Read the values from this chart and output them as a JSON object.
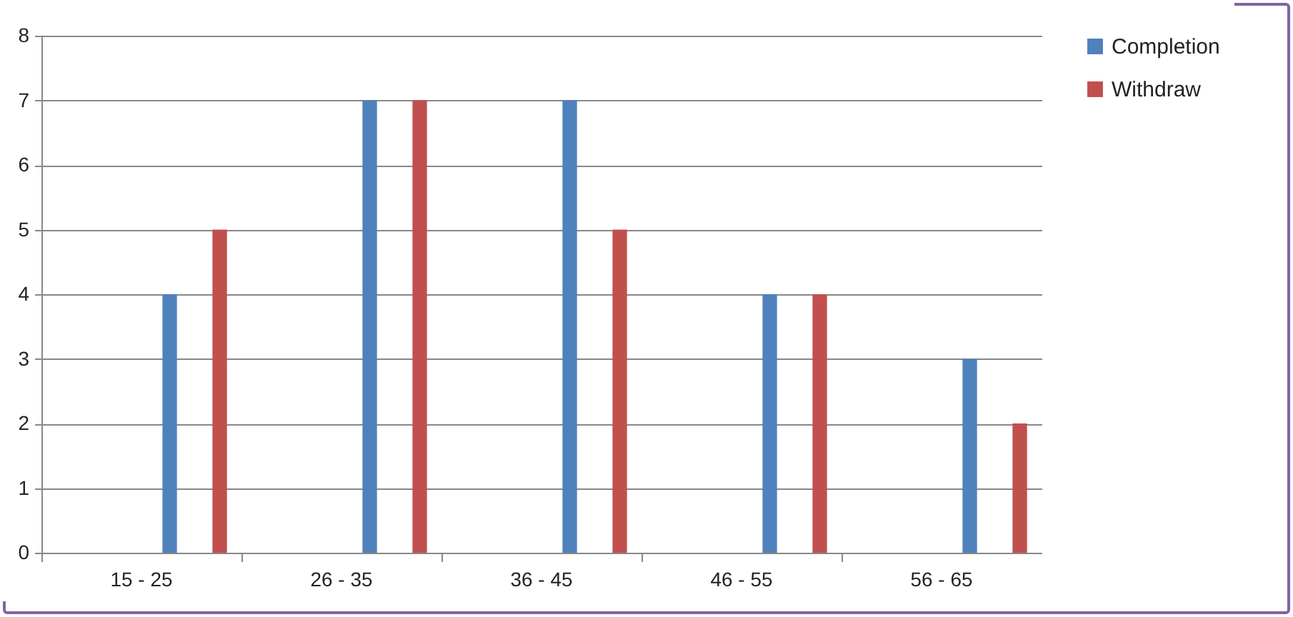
{
  "chart_data": {
    "type": "bar",
    "categories": [
      "15 - 25",
      "26 - 35",
      "36 - 45",
      "46 - 55",
      "56 - 65"
    ],
    "series": [
      {
        "name": "Completion",
        "color": "#4f81bd",
        "values": [
          4,
          7,
          7,
          4,
          3
        ]
      },
      {
        "name": "Withdraw",
        "color": "#c0504d",
        "values": [
          5,
          7,
          5,
          4,
          2
        ]
      }
    ],
    "ylim": [
      0,
      8
    ],
    "yticks": [
      0,
      1,
      2,
      3,
      4,
      5,
      6,
      7,
      8
    ],
    "grid": "y",
    "legend": "right"
  }
}
